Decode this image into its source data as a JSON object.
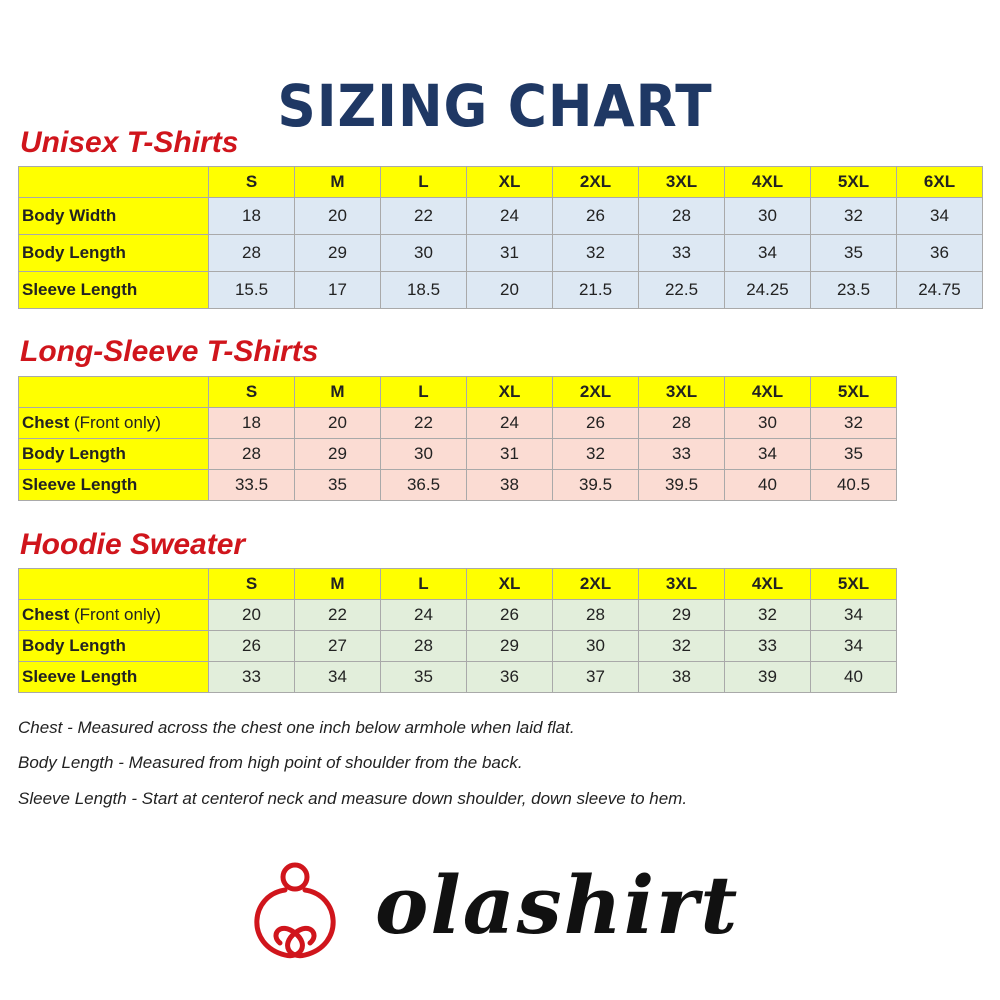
{
  "title": "SIZING CHART",
  "sizes9": [
    "S",
    "M",
    "L",
    "XL",
    "2XL",
    "3XL",
    "4XL",
    "5XL",
    "6XL"
  ],
  "sizes8": [
    "S",
    "M",
    "L",
    "XL",
    "2XL",
    "3XL",
    "4XL",
    "5XL"
  ],
  "tables": [
    {
      "heading": "Unisex T-Shirts",
      "rows": [
        {
          "label": "Body Width",
          "label_note": "",
          "values": [
            "18",
            "20",
            "22",
            "24",
            "26",
            "28",
            "30",
            "32",
            "34"
          ]
        },
        {
          "label": "Body Length",
          "label_note": "",
          "values": [
            "28",
            "29",
            "30",
            "31",
            "32",
            "33",
            "34",
            "35",
            "36"
          ]
        },
        {
          "label": "Sleeve Length",
          "label_note": "",
          "values": [
            "15.5",
            "17",
            "18.5",
            "20",
            "21.5",
            "22.5",
            "24.25",
            "23.5",
            "24.75"
          ]
        }
      ]
    },
    {
      "heading": "Long-Sleeve T-Shirts",
      "rows": [
        {
          "label": "Chest ",
          "label_note": "(Front only)",
          "values": [
            "18",
            "20",
            "22",
            "24",
            "26",
            "28",
            "30",
            "32"
          ]
        },
        {
          "label": "Body Length",
          "label_note": "",
          "values": [
            "28",
            "29",
            "30",
            "31",
            "32",
            "33",
            "34",
            "35"
          ]
        },
        {
          "label": "Sleeve Length",
          "label_note": "",
          "values": [
            "33.5",
            "35",
            "36.5",
            "38",
            "39.5",
            "39.5",
            "40",
            "40.5"
          ]
        }
      ]
    },
    {
      "heading": "Hoodie Sweater",
      "rows": [
        {
          "label": "Chest ",
          "label_note": "(Front only)",
          "values": [
            "20",
            "22",
            "24",
            "26",
            "28",
            "29",
            "32",
            "34"
          ]
        },
        {
          "label": "Body Length",
          "label_note": "",
          "values": [
            "26",
            "27",
            "28",
            "29",
            "30",
            "32",
            "33",
            "34"
          ]
        },
        {
          "label": "Sleeve Length",
          "label_note": "",
          "values": [
            "33",
            "34",
            "35",
            "36",
            "37",
            "38",
            "39",
            "40"
          ]
        }
      ]
    }
  ],
  "notes": [
    "Chest - Measured across the chest one inch below armhole when laid flat.",
    "Body Length - Measured from high point of shoulder from the back.",
    "Sleeve Length - Start at centerof neck and measure down shoulder, down sleeve to hem."
  ],
  "brand": "olashirt",
  "colors": {
    "title": "#1f3864",
    "heading": "#d0151c",
    "label_bg": "#ffff00",
    "unisex_bg": "#dde8f3",
    "longsleeve_bg": "#fbdcd3",
    "hoodie_bg": "#e2eedb"
  }
}
